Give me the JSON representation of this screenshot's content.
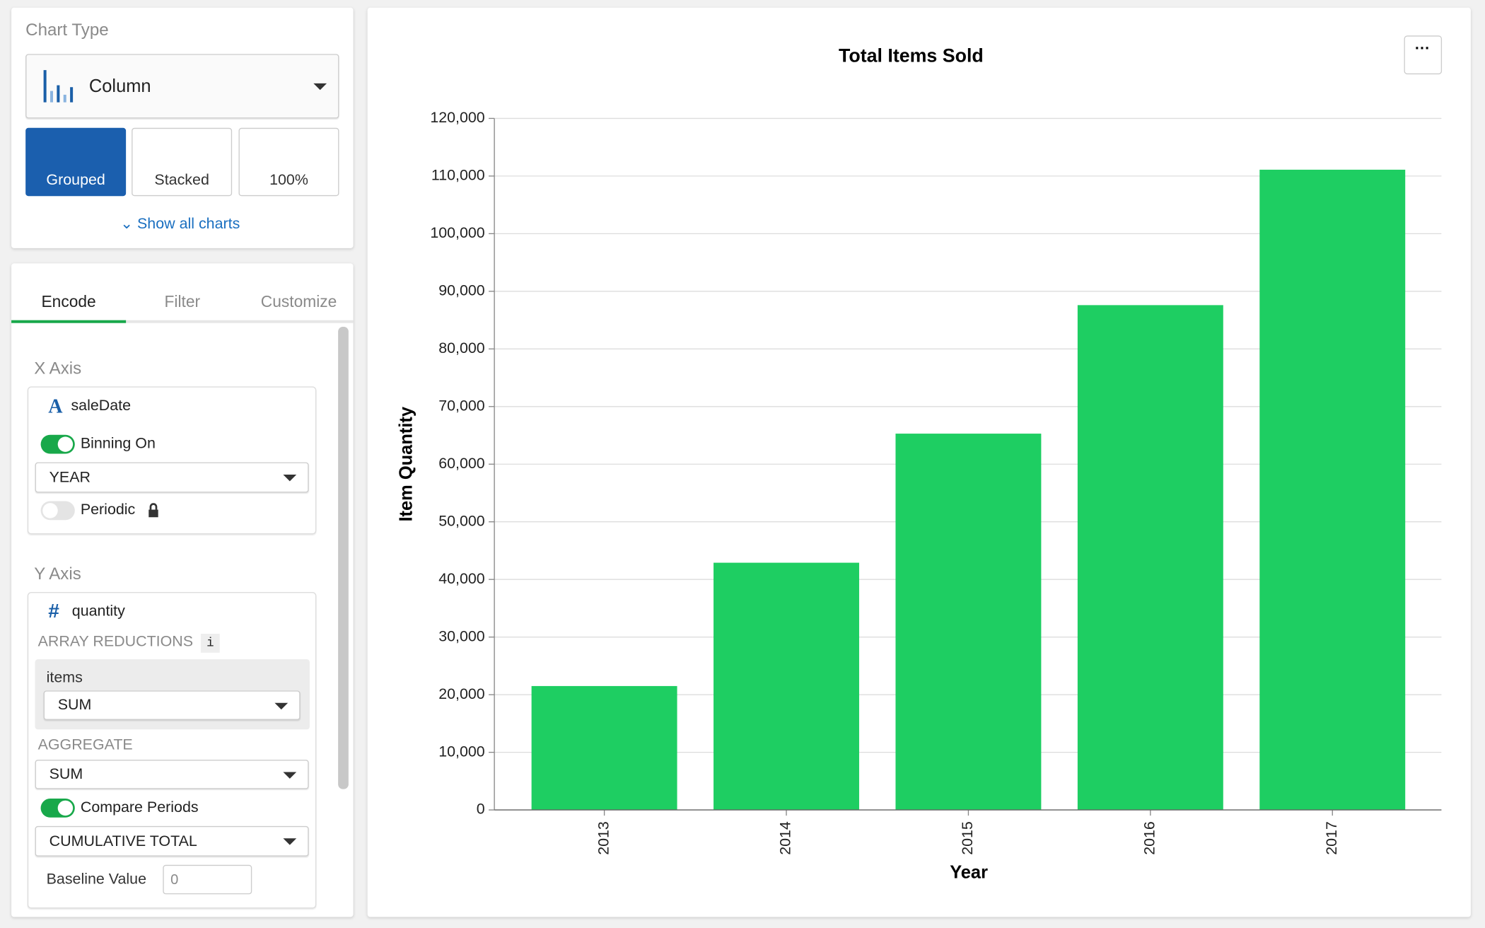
{
  "sidebar": {
    "chart_type_label": "Chart Type",
    "chart_type": "Column",
    "variants": [
      "Grouped",
      "Stacked",
      "100%"
    ],
    "show_all": "Show all charts",
    "tabs": [
      "Encode",
      "Filter",
      "Customize"
    ],
    "x_axis": {
      "heading": "X Axis",
      "field": "saleDate",
      "binning": "Binning On",
      "bin_unit": "YEAR",
      "periodic": "Periodic"
    },
    "y_axis": {
      "heading": "Y Axis",
      "field": "quantity",
      "array_reductions": "ARRAY REDUCTIONS",
      "info": "i",
      "reduction_field": "items",
      "reduction": "SUM",
      "aggregate_label": "AGGREGATE",
      "aggregate": "SUM",
      "compare": "Compare Periods",
      "compare_mode": "CUMULATIVE TOTAL",
      "baseline_label": "Baseline Value",
      "baseline_value": "0"
    }
  },
  "chart_data": {
    "type": "bar",
    "title": "Total Items Sold",
    "x_label": "Year",
    "y_label": "Item Quantity",
    "categories": [
      "2013",
      "2014",
      "2015",
      "2016",
      "2017"
    ],
    "values": [
      21500,
      42900,
      65300,
      87600,
      111100
    ],
    "color": "#1ece62",
    "ylim": [
      0,
      120000
    ],
    "yticks": [
      0,
      {
        "value": 10000,
        "label": "10,000"
      },
      {
        "value": 20000,
        "label": "20,000"
      },
      {
        "value": 30000,
        "label": "30,000"
      },
      {
        "value": 40000,
        "label": "40,000"
      },
      {
        "value": 50000,
        "label": "50,000"
      },
      {
        "value": 60000,
        "label": "60,000"
      },
      {
        "value": 70000,
        "label": "70,000"
      },
      {
        "value": 80000,
        "label": "80,000"
      },
      {
        "value": 90000,
        "label": "90,000"
      },
      {
        "value": 100000,
        "label": "100,000"
      },
      {
        "value": 110000,
        "label": "110,000"
      },
      {
        "value": 120000,
        "label": "120,000"
      }
    ],
    "grid": true
  }
}
